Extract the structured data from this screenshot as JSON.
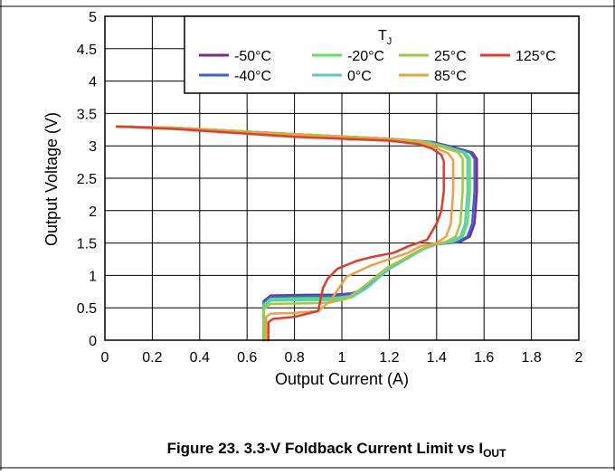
{
  "figure": {
    "caption_main": "Figure 23. 3.3-V Foldback Current Limit vs I",
    "caption_sub": "OUT"
  },
  "chart_data": {
    "type": "line",
    "xlabel": "Output Current (A)",
    "ylabel": "Output Voltage (V)",
    "xlim": [
      0,
      2
    ],
    "ylim": [
      0,
      5
    ],
    "x_ticks": [
      "0",
      "0.2",
      "0.4",
      "0.6",
      "0.8",
      "1",
      "1.2",
      "1.4",
      "1.6",
      "1.8",
      "2"
    ],
    "y_ticks": [
      "0",
      "0.5",
      "1",
      "1.5",
      "2",
      "2.5",
      "3",
      "3.5",
      "4",
      "4.5",
      "5"
    ],
    "grid": true,
    "legend": {
      "title_main": "T",
      "title_sub": "J",
      "placement": "top-right"
    },
    "series": [
      {
        "name": "-50°C",
        "color": "#7b2a8c",
        "x": [
          0.05,
          0.3,
          0.8,
          1.2,
          1.38,
          1.45,
          1.55,
          1.57,
          1.57,
          1.56,
          1.54,
          1.5,
          1.4,
          1.34,
          1.27,
          1.2,
          1.1,
          1.04,
          0.96,
          0.86,
          0.7,
          0.67,
          0.67
        ],
        "y": [
          3.3,
          3.28,
          3.18,
          3.11,
          3.06,
          3.0,
          2.9,
          2.8,
          2.3,
          1.8,
          1.6,
          1.52,
          1.48,
          1.4,
          1.25,
          1.1,
          0.8,
          0.72,
          0.7,
          0.7,
          0.69,
          0.6,
          0.0
        ]
      },
      {
        "name": "-40°C",
        "color": "#3b5fd4",
        "x": [
          0.05,
          0.3,
          0.8,
          1.2,
          1.37,
          1.44,
          1.54,
          1.56,
          1.56,
          1.55,
          1.53,
          1.49,
          1.4,
          1.34,
          1.27,
          1.2,
          1.1,
          1.04,
          0.96,
          0.86,
          0.7,
          0.67,
          0.67
        ],
        "y": [
          3.3,
          3.28,
          3.18,
          3.11,
          3.06,
          3.0,
          2.9,
          2.8,
          2.3,
          1.8,
          1.6,
          1.52,
          1.48,
          1.4,
          1.25,
          1.1,
          0.8,
          0.71,
          0.68,
          0.68,
          0.67,
          0.58,
          0.0
        ]
      },
      {
        "name": "-20°C",
        "color": "#5be35b",
        "x": [
          0.05,
          0.3,
          0.8,
          1.2,
          1.36,
          1.43,
          1.52,
          1.54,
          1.54,
          1.53,
          1.51,
          1.47,
          1.4,
          1.34,
          1.27,
          1.2,
          1.1,
          1.04,
          0.96,
          0.86,
          0.7,
          0.67,
          0.67
        ],
        "y": [
          3.3,
          3.28,
          3.18,
          3.11,
          3.06,
          3.0,
          2.9,
          2.8,
          2.3,
          1.8,
          1.6,
          1.52,
          1.48,
          1.4,
          1.25,
          1.1,
          0.79,
          0.68,
          0.65,
          0.65,
          0.64,
          0.55,
          0.0
        ]
      },
      {
        "name": "0°C",
        "color": "#5ec9c0",
        "x": [
          0.05,
          0.3,
          0.8,
          1.2,
          1.35,
          1.42,
          1.51,
          1.53,
          1.53,
          1.52,
          1.5,
          1.46,
          1.4,
          1.34,
          1.27,
          1.2,
          1.1,
          1.04,
          0.96,
          0.86,
          0.7,
          0.67,
          0.67
        ],
        "y": [
          3.3,
          3.28,
          3.18,
          3.11,
          3.06,
          3.0,
          2.9,
          2.8,
          2.3,
          1.8,
          1.6,
          1.52,
          1.48,
          1.4,
          1.25,
          1.1,
          0.79,
          0.66,
          0.62,
          0.62,
          0.61,
          0.52,
          0.0
        ]
      },
      {
        "name": "25°C",
        "color": "#a3c93a",
        "x": [
          0.05,
          0.3,
          0.8,
          1.2,
          1.34,
          1.41,
          1.49,
          1.51,
          1.51,
          1.5,
          1.48,
          1.44,
          1.38,
          1.33,
          1.26,
          1.19,
          1.09,
          1.02,
          0.95,
          0.86,
          0.7,
          0.67,
          0.67
        ],
        "y": [
          3.3,
          3.28,
          3.18,
          3.11,
          3.06,
          3.0,
          2.9,
          2.8,
          2.3,
          1.8,
          1.6,
          1.52,
          1.47,
          1.4,
          1.25,
          1.12,
          0.82,
          0.64,
          0.58,
          0.57,
          0.56,
          0.48,
          0.0
        ]
      },
      {
        "name": "85°C",
        "color": "#f0a040",
        "x": [
          0.05,
          0.3,
          0.8,
          1.2,
          1.32,
          1.39,
          1.45,
          1.47,
          1.47,
          1.46,
          1.44,
          1.4,
          1.33,
          1.28,
          1.2,
          1.12,
          1.02,
          0.95,
          0.9,
          0.8,
          0.7,
          0.68,
          0.68
        ],
        "y": [
          3.3,
          3.27,
          3.17,
          3.1,
          3.05,
          2.98,
          2.88,
          2.78,
          2.3,
          1.8,
          1.6,
          1.5,
          1.45,
          1.35,
          1.25,
          1.15,
          0.98,
          0.6,
          0.45,
          0.42,
          0.41,
          0.36,
          0.0
        ]
      },
      {
        "name": "125°C",
        "color": "#e43a2a",
        "x": [
          0.05,
          0.3,
          0.8,
          1.2,
          1.32,
          1.38,
          1.42,
          1.43,
          1.43,
          1.42,
          1.4,
          1.36,
          1.28,
          1.22,
          1.12,
          1.06,
          0.98,
          0.94,
          0.92,
          0.9,
          0.8,
          0.71,
          0.69,
          0.69
        ],
        "y": [
          3.3,
          3.26,
          3.14,
          3.08,
          3.03,
          2.96,
          2.86,
          2.76,
          2.3,
          2.0,
          1.8,
          1.55,
          1.45,
          1.35,
          1.28,
          1.22,
          1.1,
          0.95,
          0.8,
          0.45,
          0.36,
          0.33,
          0.28,
          0.0
        ]
      }
    ]
  }
}
